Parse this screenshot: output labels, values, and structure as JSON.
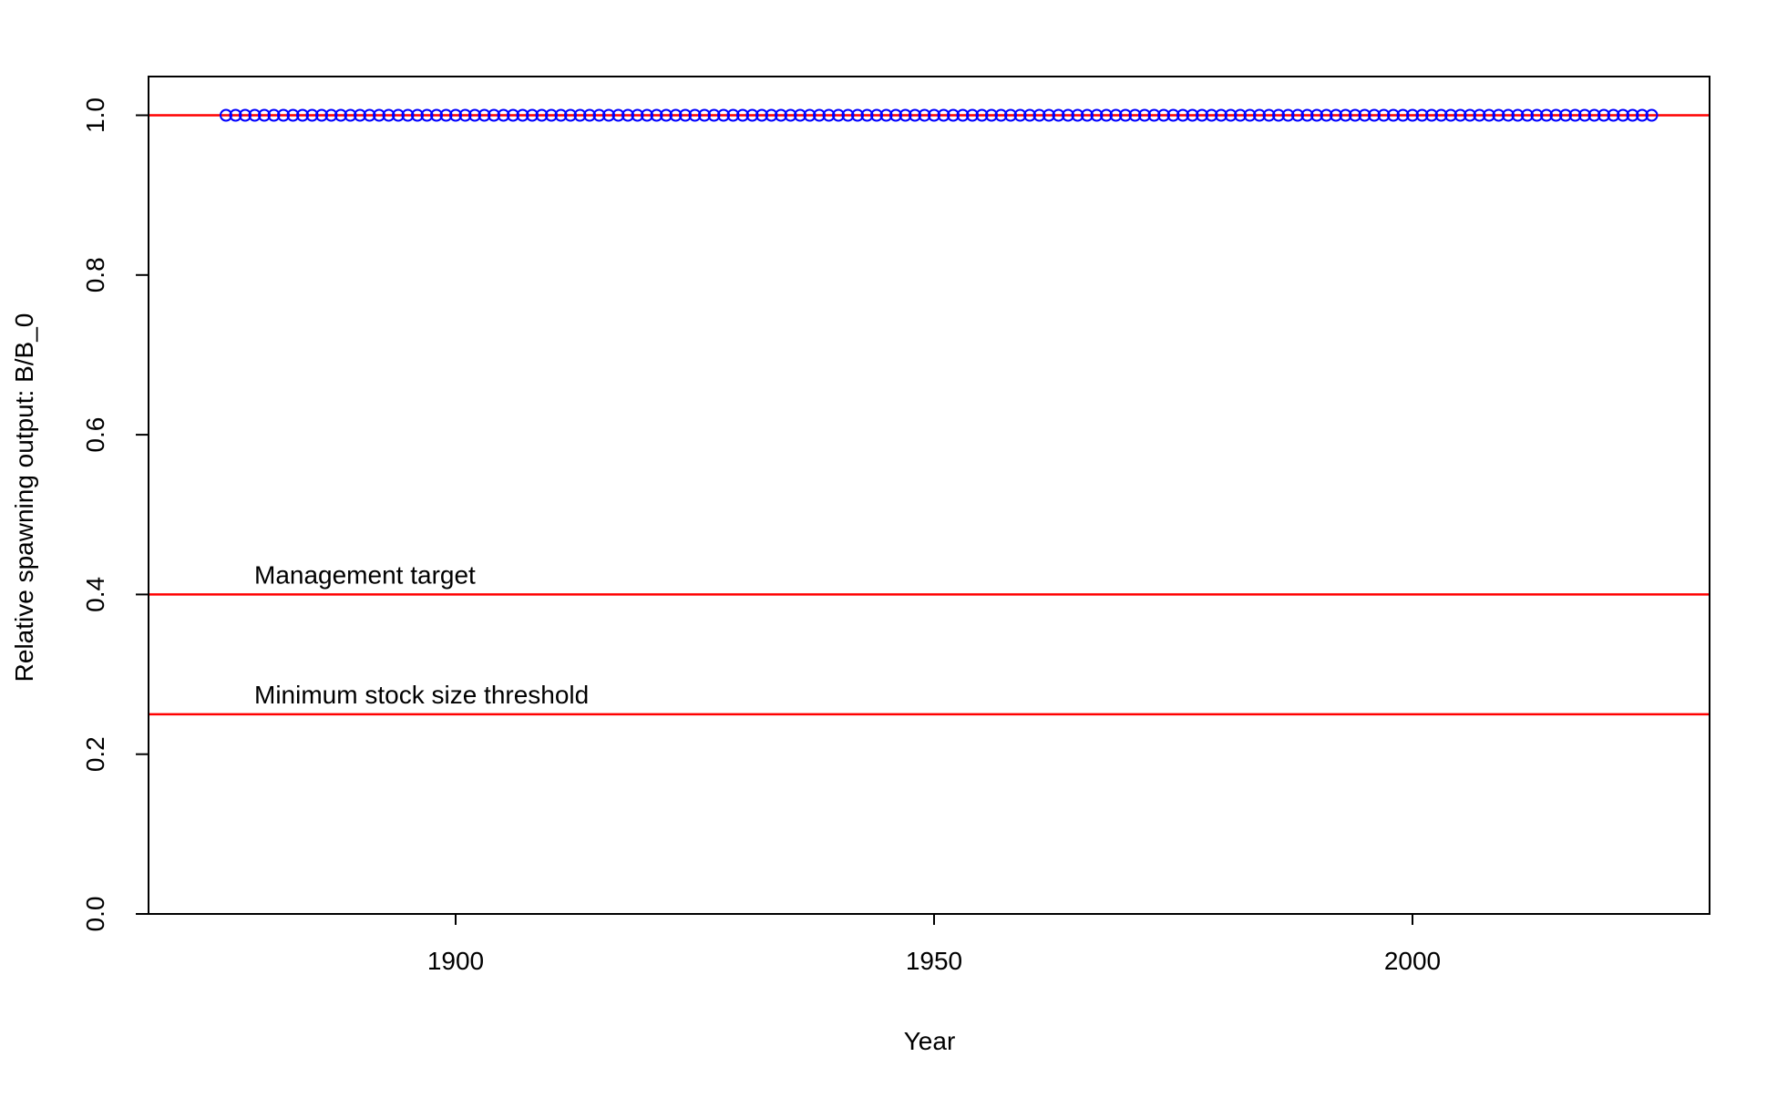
{
  "chart_data": {
    "type": "scatter",
    "title": "",
    "xlabel": "Year",
    "ylabel": "Relative spawning output: B/B_0",
    "xlim": [
      1868,
      2031
    ],
    "ylim": [
      0,
      1.05
    ],
    "x_ticks": [
      1900,
      1950,
      2000
    ],
    "y_ticks": [
      0.0,
      0.2,
      0.4,
      0.6,
      0.8,
      1.0
    ],
    "y_tick_labels": [
      "0.0",
      "0.2",
      "0.4",
      "0.6",
      "0.8",
      "1.0"
    ],
    "grid": false,
    "colors": {
      "points": "#0000ff",
      "reference_lines": "#ff0000",
      "axes": "#000000"
    },
    "series": [
      {
        "marker": "open-circle",
        "x_start": 1876,
        "x_end": 2025,
        "x_step": 1,
        "y_value": 1.0
      }
    ],
    "reference_lines": [
      {
        "y": 1.0,
        "label": ""
      },
      {
        "y": 0.4,
        "label": "Management target"
      },
      {
        "y": 0.25,
        "label": "Minimum stock size threshold"
      }
    ]
  }
}
